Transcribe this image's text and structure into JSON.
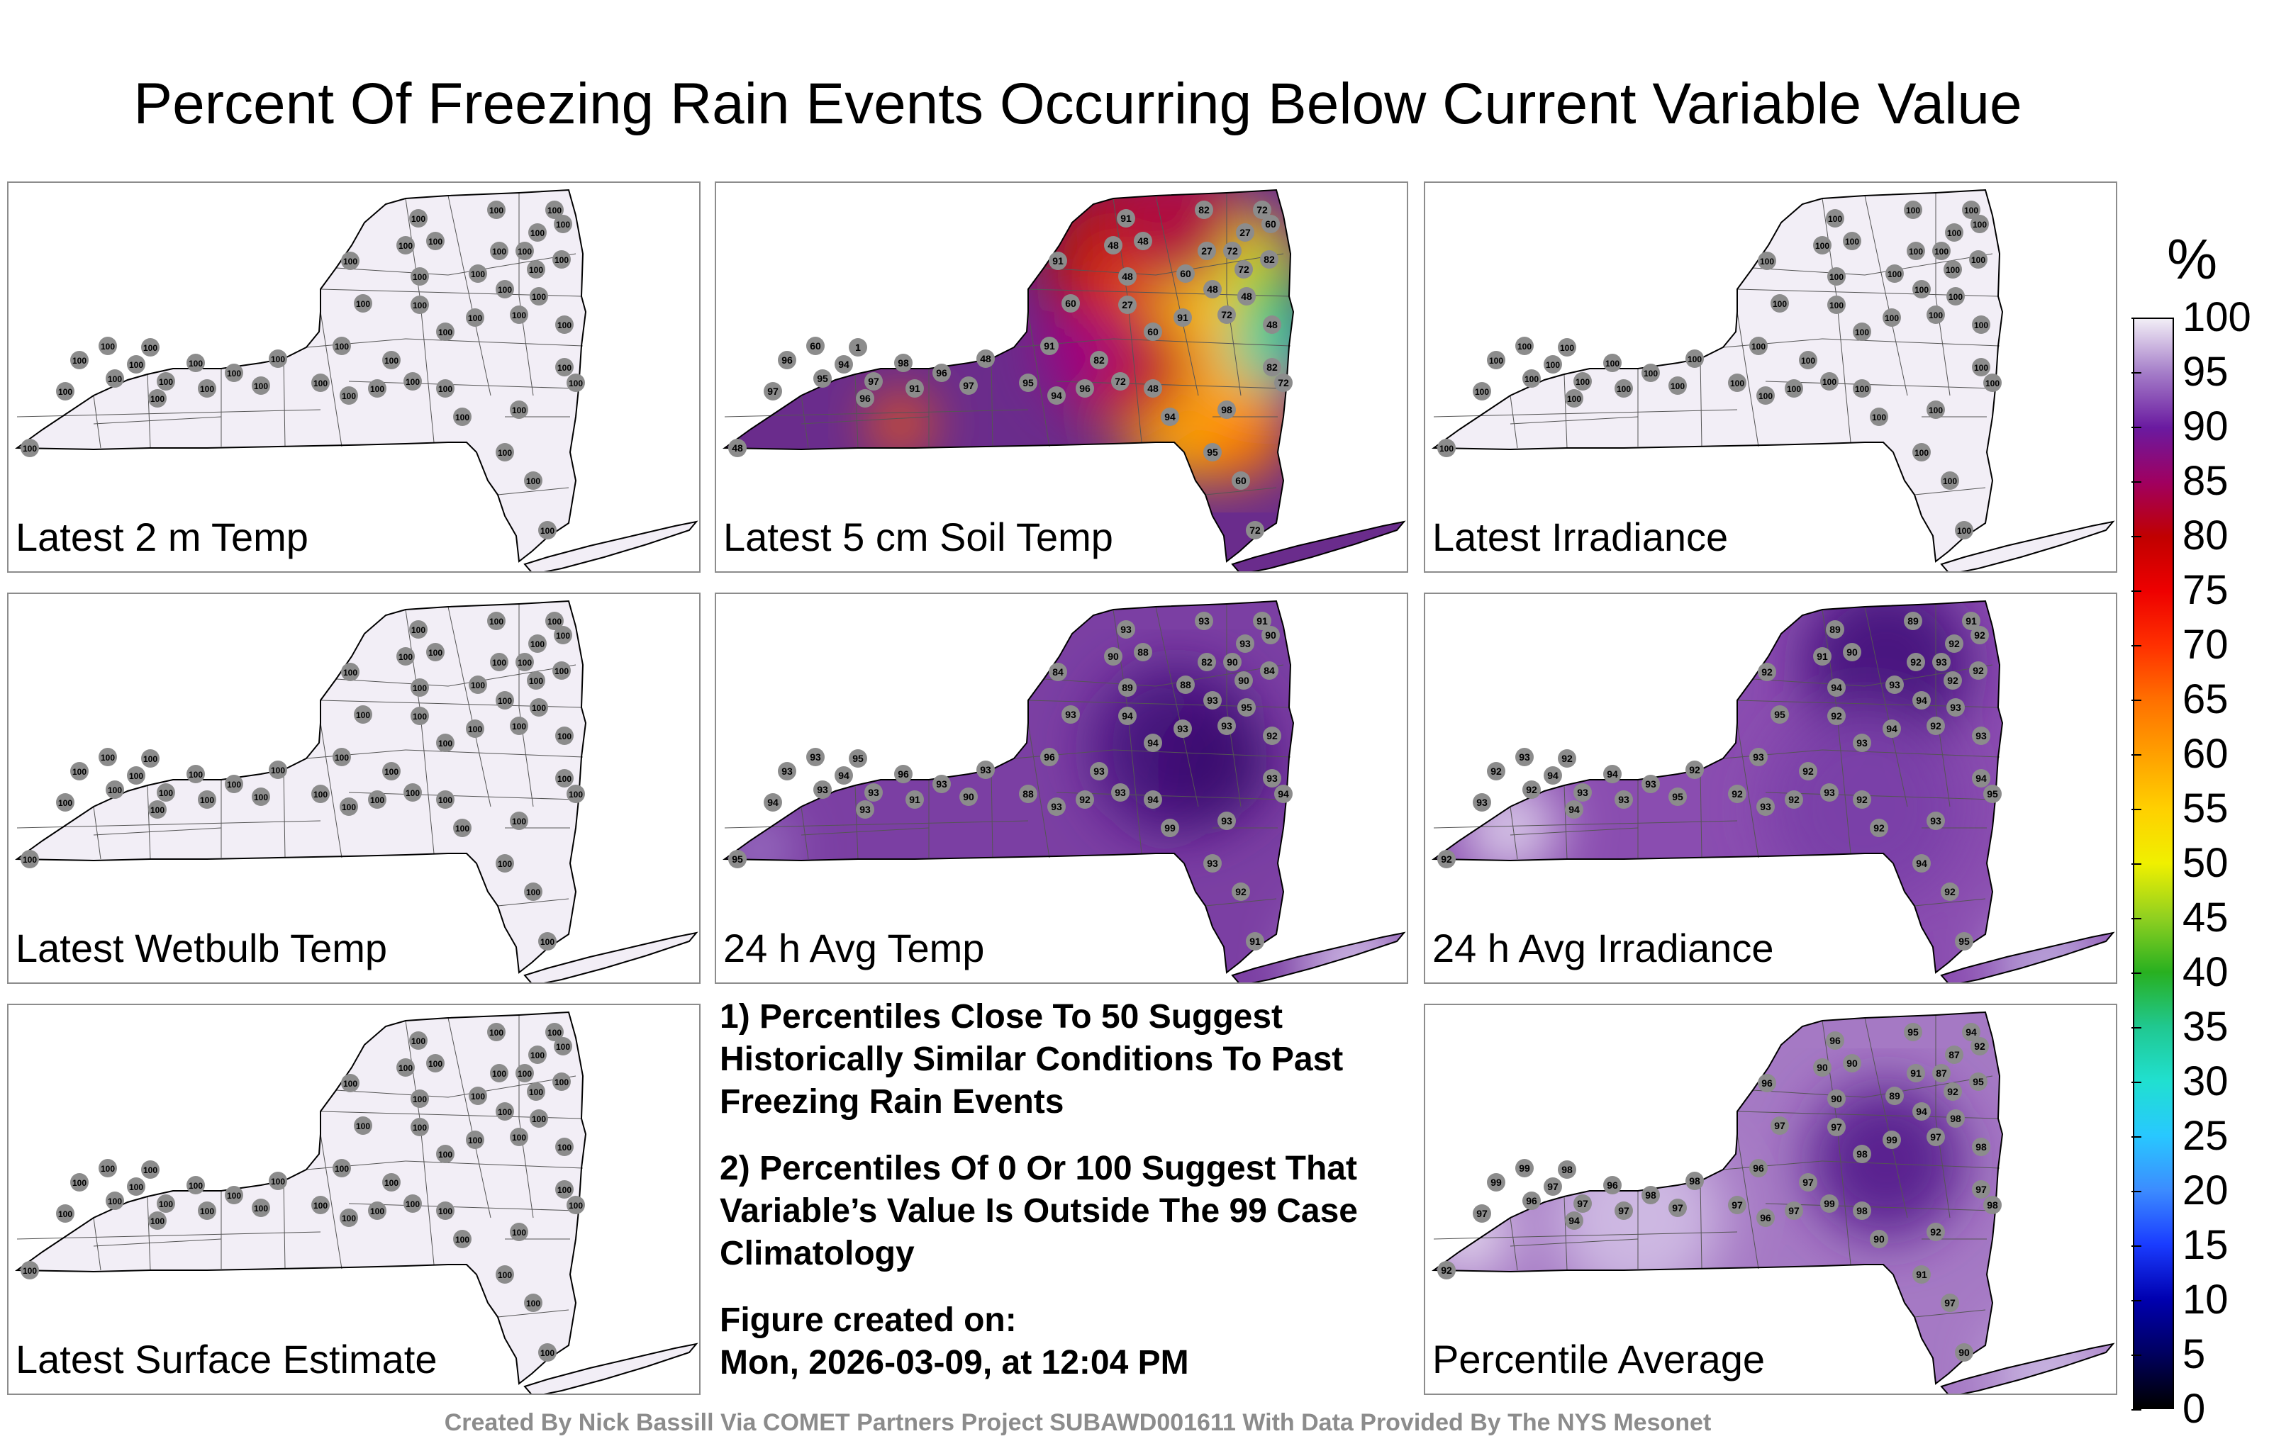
{
  "title": "Percent Of Freezing Rain Events Occurring Below Current Variable Value",
  "footer": "Created By Nick Bassill Via COMET Partners Project SUBAWD001611 With Data Provided By The NYS Mesonet",
  "notes": {
    "note1": "1) Percentiles Close To 50 Suggest Historically Similar Conditions To Past Freezing Rain Events",
    "note2": "2) Percentiles Of 0 Or 100 Suggest That Variable’s Value Is Outside The 99 Case Climatology",
    "created_label": "Figure created on:",
    "created_value": "Mon, 2026-03-09, at 12:04 PM"
  },
  "colorbar": {
    "unit": "%",
    "ticks": [
      "0",
      "5",
      "10",
      "15",
      "20",
      "25",
      "30",
      "35",
      "40",
      "45",
      "50",
      "55",
      "60",
      "65",
      "70",
      "75",
      "80",
      "85",
      "90",
      "95",
      "100"
    ]
  },
  "chart_data": [
    {
      "type": "heatmap",
      "title": "Latest 2 m Temp",
      "fill": "#f2eef6",
      "values": [
        100,
        100,
        100,
        100,
        100,
        100,
        100,
        100,
        100,
        100,
        100,
        100,
        100,
        100,
        100,
        100,
        100,
        100,
        100,
        100,
        100,
        100,
        100,
        100,
        100,
        100,
        100,
        100,
        100,
        100,
        100,
        100,
        100,
        100,
        100,
        100,
        100,
        100,
        100,
        100,
        100,
        100,
        100,
        100,
        100,
        100,
        100,
        100,
        100,
        100
      ]
    },
    {
      "type": "heatmap",
      "title": "Latest 5 cm Soil Temp",
      "fill": "#6a2c8c",
      "values": [
        91,
        82,
        72,
        60,
        27,
        48,
        91,
        48,
        27,
        72,
        82,
        48,
        60,
        72,
        48,
        27,
        60,
        48,
        91,
        60,
        72,
        48,
        82,
        72,
        60,
        1,
        94,
        97,
        95,
        96,
        97,
        98,
        96,
        97,
        48,
        91,
        96,
        95,
        94,
        96,
        72,
        48,
        82,
        91,
        94,
        98,
        95,
        60,
        72,
        48
      ]
    },
    {
      "type": "heatmap",
      "title": "Latest Irradiance",
      "fill": "#f2eef6",
      "values": [
        100,
        100,
        100,
        100,
        100,
        100,
        100,
        100,
        100,
        100,
        100,
        100,
        100,
        100,
        100,
        100,
        100,
        100,
        100,
        100,
        100,
        100,
        100,
        100,
        100,
        100,
        100,
        100,
        100,
        100,
        100,
        100,
        100,
        100,
        100,
        100,
        100,
        100,
        100,
        100,
        100,
        100,
        100,
        100,
        100,
        100,
        100,
        100,
        100,
        100
      ]
    },
    {
      "type": "heatmap",
      "title": "Latest Wetbulb Temp",
      "fill": "#f2eef6",
      "values": [
        100,
        100,
        100,
        100,
        100,
        100,
        100,
        100,
        100,
        100,
        100,
        100,
        100,
        100,
        100,
        100,
        100,
        100,
        100,
        100,
        100,
        100,
        100,
        100,
        100,
        100,
        100,
        100,
        100,
        100,
        100,
        100,
        100,
        100,
        100,
        100,
        100,
        100,
        100,
        100,
        100,
        100,
        100,
        100,
        100,
        100,
        100,
        100,
        100,
        100
      ]
    },
    {
      "type": "heatmap",
      "title": "24 h Avg Temp",
      "fill": "#7b3fa3",
      "values": [
        93,
        93,
        91,
        90,
        93,
        88,
        84,
        90,
        82,
        90,
        84,
        89,
        88,
        90,
        93,
        94,
        93,
        95,
        93,
        94,
        93,
        92,
        93,
        94,
        93,
        95,
        94,
        93,
        93,
        93,
        94,
        96,
        93,
        90,
        93,
        91,
        93,
        88,
        93,
        92,
        93,
        94,
        93,
        96,
        99,
        93,
        93,
        92,
        91,
        95
      ]
    },
    {
      "type": "heatmap",
      "title": "24 h Avg Irradiance",
      "fill": "#8a4db0",
      "values": [
        89,
        89,
        91,
        92,
        92,
        90,
        92,
        91,
        92,
        93,
        92,
        94,
        93,
        92,
        94,
        92,
        95,
        93,
        94,
        93,
        92,
        93,
        94,
        95,
        93,
        92,
        94,
        93,
        92,
        92,
        93,
        94,
        93,
        95,
        92,
        93,
        94,
        92,
        93,
        92,
        93,
        92,
        92,
        93,
        92,
        93,
        94,
        92,
        95,
        92
      ]
    },
    {
      "type": "heatmap",
      "title": "Latest Surface Estimate",
      "fill": "#f2eef6",
      "values": [
        100,
        100,
        100,
        100,
        100,
        100,
        100,
        100,
        100,
        100,
        100,
        100,
        100,
        100,
        100,
        100,
        100,
        100,
        100,
        100,
        100,
        100,
        100,
        100,
        100,
        100,
        100,
        100,
        100,
        100,
        100,
        100,
        100,
        100,
        100,
        100,
        100,
        100,
        100,
        100,
        100,
        100,
        100,
        100,
        100,
        100,
        100,
        100,
        100,
        100
      ]
    },
    {
      "type": "heatmap",
      "title": "Percentile Average",
      "fill": "#a579c4",
      "values": [
        96,
        95,
        94,
        92,
        87,
        90,
        96,
        90,
        91,
        87,
        95,
        90,
        89,
        92,
        94,
        97,
        97,
        98,
        99,
        98,
        97,
        98,
        97,
        98,
        99,
        98,
        97,
        97,
        96,
        99,
        97,
        96,
        98,
        97,
        98,
        97,
        94,
        97,
        96,
        97,
        99,
        98,
        97,
        96,
        90,
        92,
        91,
        97,
        90,
        92
      ]
    }
  ]
}
